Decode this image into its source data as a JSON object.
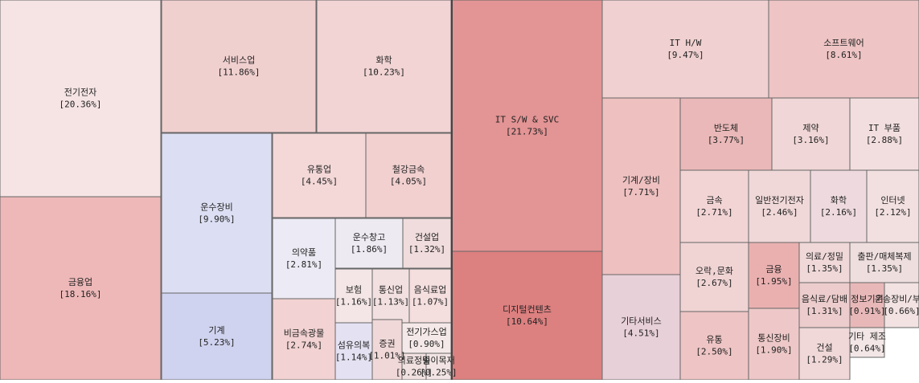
{
  "chart_data": {
    "type": "treemap",
    "categories": [
      "전기전자",
      "금융업",
      "서비스업",
      "화학",
      "운수장비",
      "기계",
      "유통업",
      "철강금속",
      "의약품",
      "운수창고",
      "건설업",
      "비금속광물",
      "보험",
      "통신업",
      "음식료업",
      "섬유의복",
      "증권",
      "전기가스업",
      "의료정밀",
      "종이목재",
      "IT S/W & SVC",
      "디지털컨텐츠",
      "IT H/W",
      "소프트웨어",
      "기계/장비",
      "기타서비스",
      "반도체",
      "제약",
      "IT 부품",
      "금속",
      "일반전기전자",
      "화학",
      "인터넷",
      "오락,문화",
      "유통",
      "금융",
      "통신장비",
      "의료/정밀",
      "출판/매체복제",
      "음식료/담배",
      "정보기기",
      "운송장비/부품",
      "건설",
      "기타 제조"
    ],
    "values": [
      20.36,
      18.16,
      11.86,
      10.23,
      9.9,
      5.23,
      4.45,
      4.05,
      2.81,
      1.86,
      1.32,
      2.74,
      1.16,
      1.13,
      1.07,
      1.14,
      1.01,
      0.9,
      0.26,
      0.25,
      21.73,
      10.64,
      9.47,
      8.61,
      7.71,
      4.51,
      3.77,
      3.16,
      2.88,
      2.71,
      2.46,
      2.16,
      2.12,
      2.67,
      2.5,
      1.95,
      1.9,
      1.35,
      1.35,
      1.31,
      0.91,
      0.66,
      1.29,
      0.64
    ],
    "value_labels": [
      "[20.36%]",
      "[18.16%]",
      "[11.86%]",
      "[10.23%]",
      "[9.90%]",
      "[5.23%]",
      "[4.45%]",
      "[4.05%]",
      "[2.81%]",
      "[1.86%]",
      "[1.32%]",
      "[2.74%]",
      "[1.16%]",
      "[1.13%]",
      "[1.07%]",
      "[1.14%]",
      "[1.01%]",
      "[0.90%]",
      "[0.26%]",
      "[0.25%]",
      "[21.73%]",
      "[10.64%]",
      "[9.47%]",
      "[8.61%]",
      "[7.71%]",
      "[4.51%]",
      "[3.77%]",
      "[3.16%]",
      "[2.88%]",
      "[2.71%]",
      "[2.46%]",
      "[2.16%]",
      "[2.12%]",
      "[2.67%]",
      "[2.50%]",
      "[1.95%]",
      "[1.90%]",
      "[1.35%]",
      "[1.35%]",
      "[1.31%]",
      "[0.91%]",
      "[0.66%]",
      "[1.29%]",
      "[0.64%]"
    ],
    "colors": [
      "#f6e4e4",
      "#eeb8b8",
      "#f0cfcf",
      "#f2d4d4",
      "#dcdff3",
      "#cfd3ef",
      "#f4d8d8",
      "#f2d0d0",
      "#eceaf4",
      "#eeeaf2",
      "#f0dcdc",
      "#f2d2d2",
      "#f4e6e6",
      "#f2e0e0",
      "#f4dede",
      "#e4e2f2",
      "#f0d8d8",
      "#f4e8e8",
      "#f0e0e0",
      "#f2e4e4",
      "#e39494",
      "#dd8080",
      "#f0d0d0",
      "#eec4c4",
      "#eec0c0",
      "#e8d0d8",
      "#eab8b8",
      "#f0d6d6",
      "#f2dede",
      "#f2d4d4",
      "#f0d8d8",
      "#eedade",
      "#f2e0e0",
      "#f0d4d4",
      "#eec4c4",
      "#eab0b0",
      "#eec8c8",
      "#f0d8d8",
      "#eedede",
      "#eccccc",
      "#e8b8b8",
      "#f2e2e2",
      "#f0d8d8",
      "#f2e6e6"
    ]
  }
}
